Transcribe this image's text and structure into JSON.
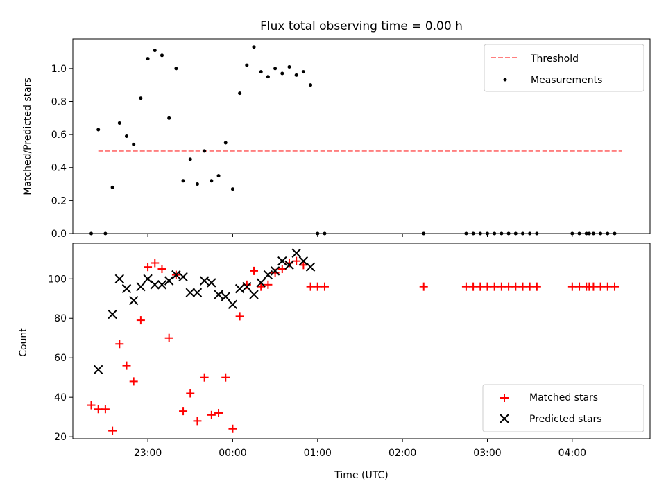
{
  "chart_data": [
    {
      "type": "scatter",
      "title": "Flux total observing time = 0.00 h",
      "ylabel": "Matched/Predicted stars",
      "xlabel": "",
      "ylim": [
        0,
        1.18
      ],
      "yticks": [
        "0.0",
        "0.2",
        "0.4",
        "0.6",
        "0.8",
        "1.0"
      ],
      "legend_position": "upper right",
      "threshold": {
        "name": "Threshold",
        "value": 0.5,
        "x_start": -95,
        "x_end": 275,
        "color": "#ff7f7f",
        "style": "dashed"
      },
      "series": [
        {
          "name": "Measurements",
          "color": "#000000",
          "marker": "dot",
          "points": [
            [
              -100,
              0.0
            ],
            [
              -95,
              0.63
            ],
            [
              -90,
              0.0
            ],
            [
              -85,
              0.28
            ],
            [
              -80,
              0.67
            ],
            [
              -75,
              0.59
            ],
            [
              -70,
              0.54
            ],
            [
              -65,
              0.82
            ],
            [
              -60,
              1.06
            ],
            [
              -55,
              1.11
            ],
            [
              -50,
              1.08
            ],
            [
              -45,
              0.7
            ],
            [
              -40,
              1.0
            ],
            [
              -35,
              0.32
            ],
            [
              -30,
              0.45
            ],
            [
              -25,
              0.3
            ],
            [
              -20,
              0.5
            ],
            [
              -15,
              0.32
            ],
            [
              -10,
              0.35
            ],
            [
              -5,
              0.55
            ],
            [
              0,
              0.27
            ],
            [
              5,
              0.85
            ],
            [
              10,
              1.02
            ],
            [
              15,
              1.13
            ],
            [
              20,
              0.98
            ],
            [
              25,
              0.95
            ],
            [
              30,
              1.0
            ],
            [
              35,
              0.97
            ],
            [
              40,
              1.01
            ],
            [
              45,
              0.96
            ],
            [
              50,
              0.98
            ],
            [
              55,
              0.9
            ],
            [
              60,
              0.0
            ],
            [
              65,
              0.0
            ],
            [
              135,
              0.0
            ],
            [
              165,
              0.0
            ],
            [
              170,
              0.0
            ],
            [
              175,
              0.0
            ],
            [
              180,
              0.0
            ],
            [
              185,
              0.0
            ],
            [
              190,
              0.0
            ],
            [
              195,
              0.0
            ],
            [
              200,
              0.0
            ],
            [
              205,
              0.0
            ],
            [
              210,
              0.0
            ],
            [
              215,
              0.0
            ],
            [
              240,
              0.0
            ],
            [
              245,
              0.0
            ],
            [
              250,
              0.0
            ],
            [
              252,
              0.0
            ],
            [
              255,
              0.0
            ],
            [
              260,
              0.0
            ],
            [
              265,
              0.0
            ],
            [
              270,
              0.0
            ]
          ]
        }
      ]
    },
    {
      "type": "scatter",
      "title": "",
      "ylabel": "Count",
      "xlabel": "Time (UTC)",
      "ylim": [
        19,
        118
      ],
      "yticks": [
        "20",
        "40",
        "60",
        "80",
        "100"
      ],
      "xticks": [
        "23:00",
        "00:00",
        "01:00",
        "02:00",
        "03:00",
        "04:00"
      ],
      "legend_position": "lower right",
      "series": [
        {
          "name": "Matched stars",
          "color": "#ff0000",
          "marker": "plus",
          "points": [
            [
              -100,
              36
            ],
            [
              -95,
              34
            ],
            [
              -90,
              34
            ],
            [
              -85,
              23
            ],
            [
              -80,
              67
            ],
            [
              -75,
              56
            ],
            [
              -70,
              48
            ],
            [
              -65,
              79
            ],
            [
              -60,
              106
            ],
            [
              -55,
              108
            ],
            [
              -50,
              105
            ],
            [
              -45,
              70
            ],
            [
              -40,
              102
            ],
            [
              -35,
              33
            ],
            [
              -30,
              42
            ],
            [
              -25,
              28
            ],
            [
              -20,
              50
            ],
            [
              -15,
              31
            ],
            [
              -10,
              32
            ],
            [
              -5,
              50
            ],
            [
              0,
              24
            ],
            [
              5,
              81
            ],
            [
              10,
              97
            ],
            [
              15,
              104
            ],
            [
              20,
              96
            ],
            [
              25,
              97
            ],
            [
              30,
              103
            ],
            [
              35,
              105
            ],
            [
              40,
              108
            ],
            [
              45,
              109
            ],
            [
              50,
              107
            ],
            [
              55,
              96
            ],
            [
              60,
              96
            ],
            [
              65,
              96
            ],
            [
              135,
              96
            ],
            [
              165,
              96
            ],
            [
              170,
              96
            ],
            [
              175,
              96
            ],
            [
              180,
              96
            ],
            [
              185,
              96
            ],
            [
              190,
              96
            ],
            [
              195,
              96
            ],
            [
              200,
              96
            ],
            [
              205,
              96
            ],
            [
              210,
              96
            ],
            [
              215,
              96
            ],
            [
              240,
              96
            ],
            [
              245,
              96
            ],
            [
              250,
              96
            ],
            [
              252,
              96
            ],
            [
              255,
              96
            ],
            [
              260,
              96
            ],
            [
              265,
              96
            ],
            [
              270,
              96
            ]
          ]
        },
        {
          "name": "Predicted stars",
          "color": "#000000",
          "marker": "x",
          "points": [
            [
              -95,
              54
            ],
            [
              -85,
              82
            ],
            [
              -80,
              100
            ],
            [
              -75,
              95
            ],
            [
              -70,
              89
            ],
            [
              -65,
              96
            ],
            [
              -60,
              100
            ],
            [
              -55,
              97
            ],
            [
              -50,
              97
            ],
            [
              -45,
              99
            ],
            [
              -40,
              102
            ],
            [
              -35,
              101
            ],
            [
              -30,
              93
            ],
            [
              -25,
              93
            ],
            [
              -20,
              99
            ],
            [
              -15,
              98
            ],
            [
              -10,
              92
            ],
            [
              -5,
              91
            ],
            [
              0,
              87
            ],
            [
              5,
              95
            ],
            [
              10,
              96
            ],
            [
              15,
              92
            ],
            [
              20,
              98
            ],
            [
              25,
              102
            ],
            [
              30,
              104
            ],
            [
              35,
              109
            ],
            [
              40,
              107
            ],
            [
              45,
              113
            ],
            [
              50,
              109
            ],
            [
              55,
              106
            ]
          ]
        }
      ]
    }
  ]
}
